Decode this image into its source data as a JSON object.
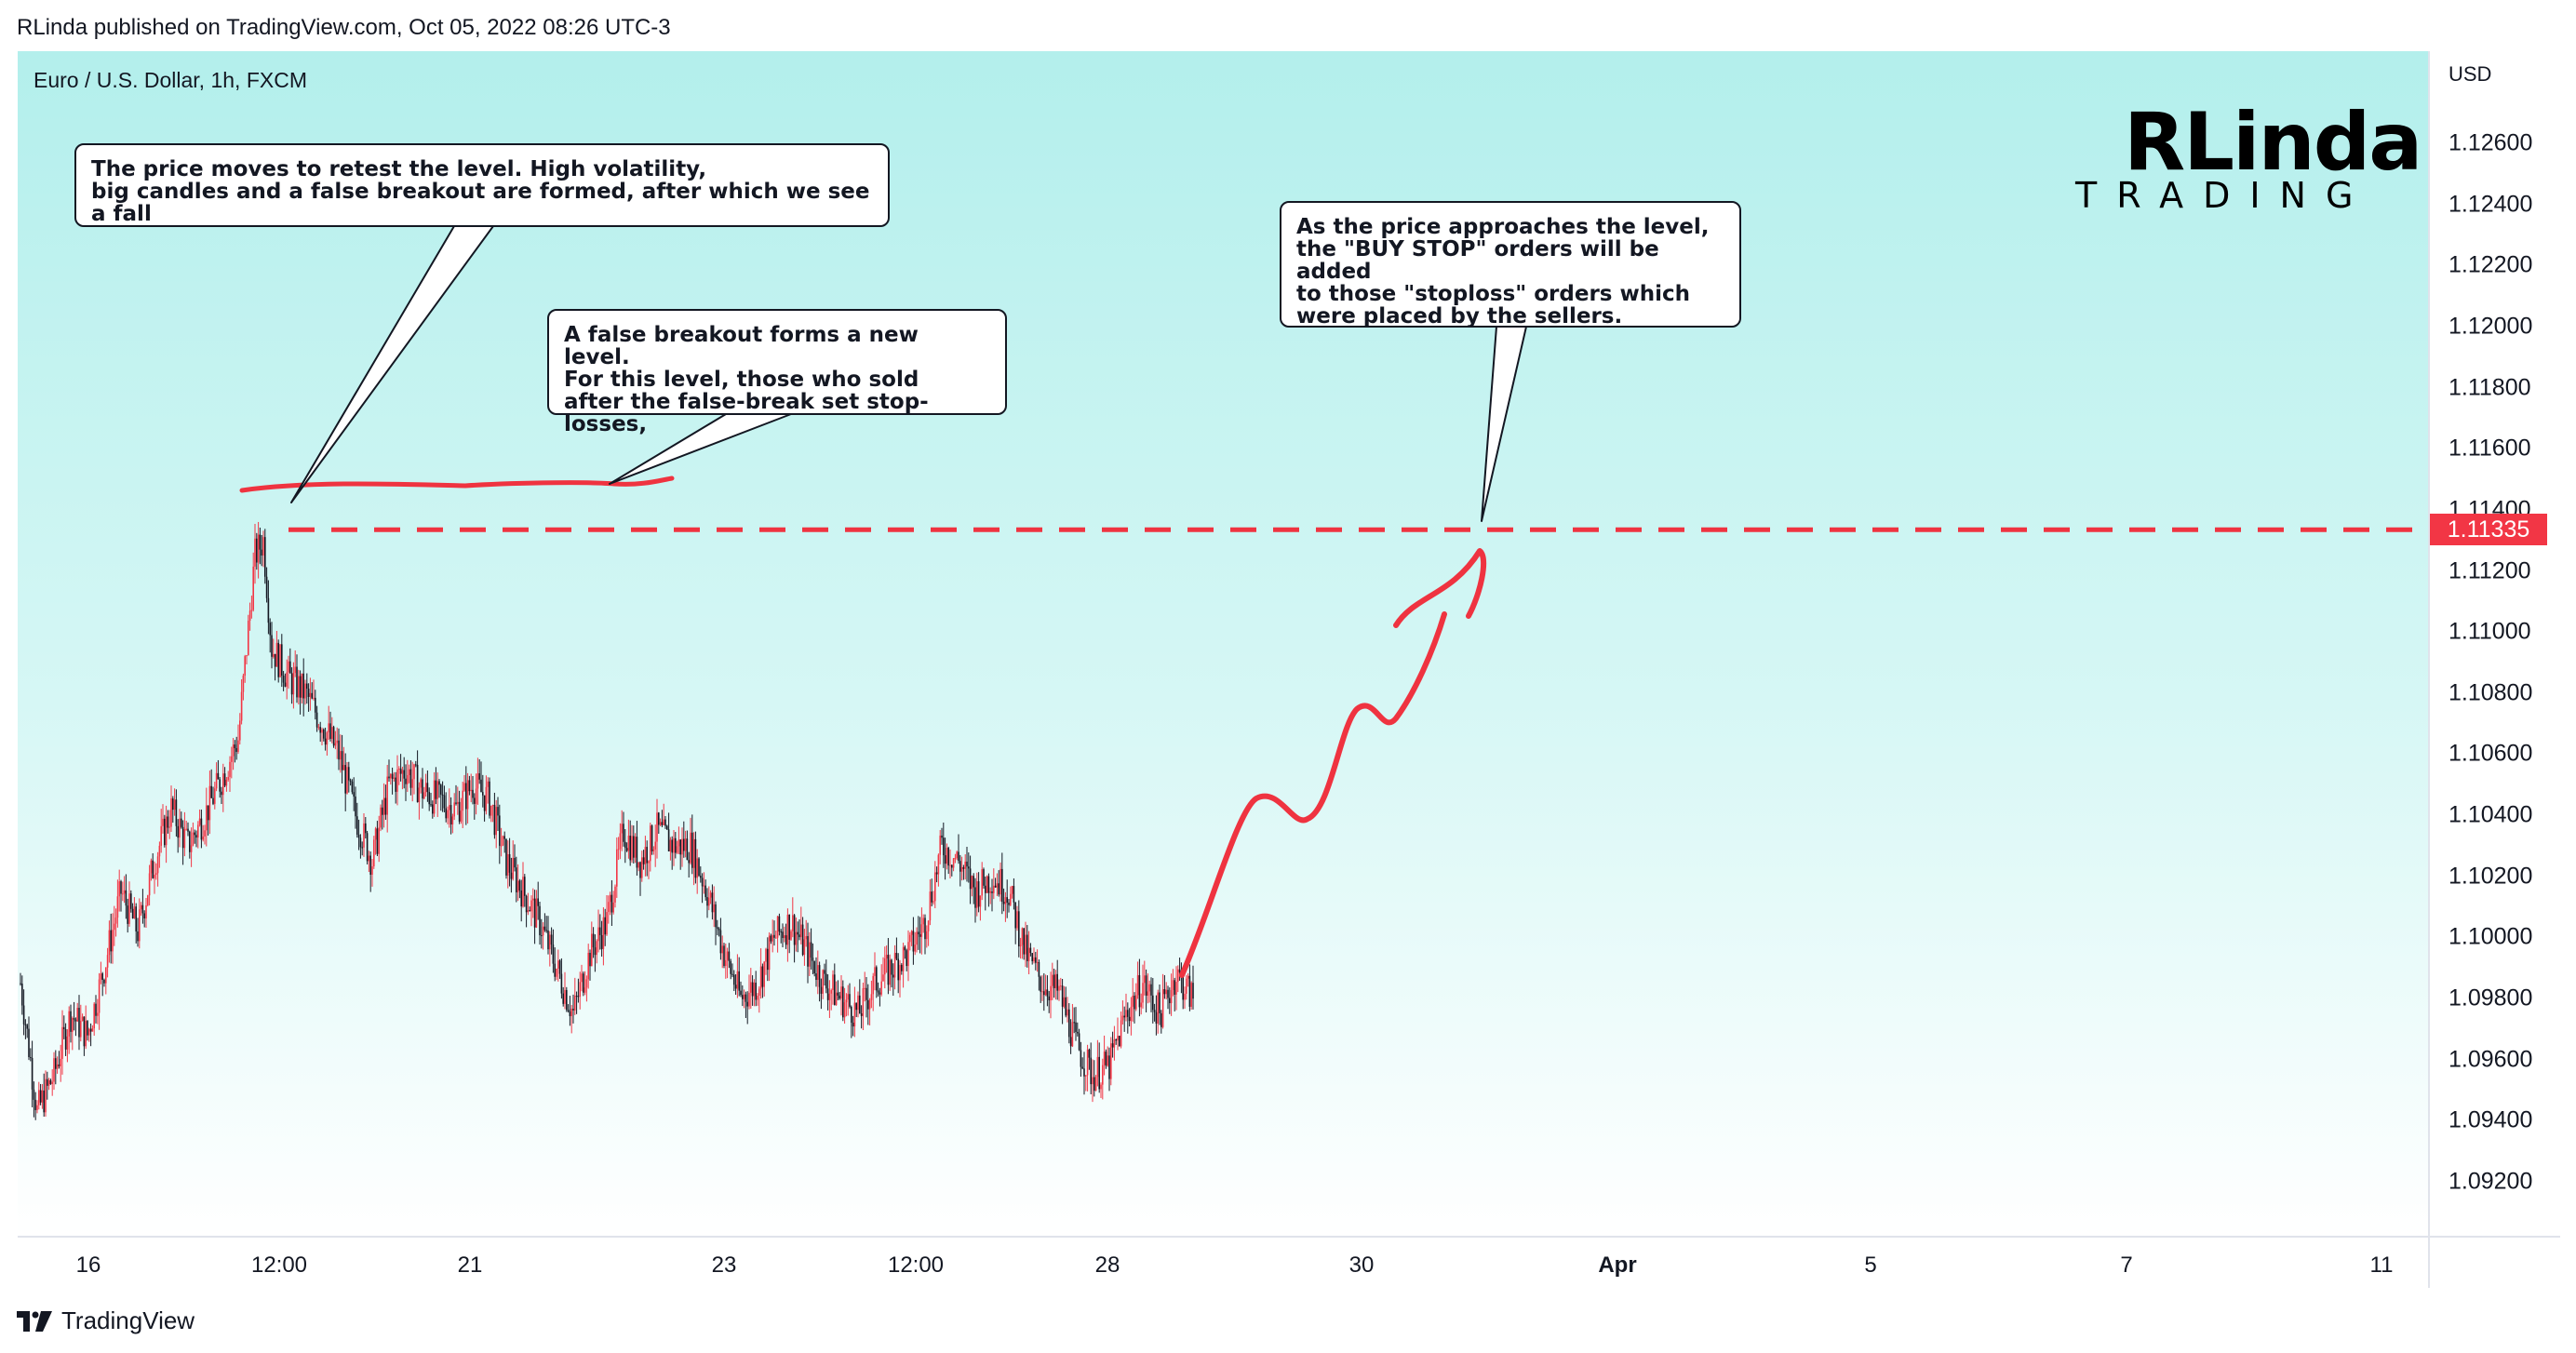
{
  "header": {
    "published": "RLinda published on TradingView.com, Oct 05, 2022 08:26 UTC-3"
  },
  "symbol_label": "Euro / U.S. Dollar, 1h, FXCM",
  "logo": {
    "top": "RLinda",
    "bottom": "TRADING"
  },
  "price_axis": {
    "unit": "USD"
  },
  "price_tag": {
    "value": "1.11335",
    "color": "#f23645"
  },
  "callouts": {
    "retest": "The price moves to retest the level. High volatility,\nbig candles and a false breakout are formed, after which we see a fall",
    "false_breakout": "A false breakout forms a new level.\nFor this level, those who sold\nafter the false-break set stop-losses,",
    "buy_stop": "As the price approaches the level,\nthe \"BUY STOP\" orders will be added\nto those \"stoploss\" orders which\nwere placed by the sellers."
  },
  "footer": {
    "brand": "TradingView"
  },
  "colors": {
    "up": "#f23645",
    "down": "#131722",
    "annotation": "#ef3340",
    "background_top": "#b3efec"
  },
  "chart_data": {
    "type": "candlestick",
    "instrument": "Euro / U.S. Dollar, 1h, FXCM",
    "ylim": [
      1.0905,
      1.1275
    ],
    "yticks": [
      "1.12600",
      "1.12400",
      "1.12200",
      "1.12000",
      "1.11800",
      "1.11600",
      "1.11400",
      "1.11200",
      "1.11000",
      "1.10800",
      "1.10600",
      "1.10400",
      "1.10200",
      "1.10000",
      "1.09800",
      "1.09600",
      "1.09400",
      "1.09200"
    ],
    "xticks": [
      "16",
      "12:00",
      "21",
      "23",
      "12:00",
      "28",
      "30",
      "Apr",
      "5",
      "7",
      "11"
    ],
    "level": 1.11335,
    "price_path": [
      [
        0,
        1.0985
      ],
      [
        10,
        1.0943
      ],
      [
        20,
        1.0955
      ],
      [
        30,
        1.0975
      ],
      [
        40,
        1.0968
      ],
      [
        50,
        1.099
      ],
      [
        60,
        1.1015
      ],
      [
        70,
        1.1002
      ],
      [
        80,
        1.1025
      ],
      [
        90,
        1.1042
      ],
      [
        100,
        1.103
      ],
      [
        110,
        1.104
      ],
      [
        120,
        1.1052
      ],
      [
        130,
        1.1065
      ],
      [
        140,
        1.1125
      ],
      [
        145,
        1.113
      ],
      [
        150,
        1.1095
      ],
      [
        160,
        1.1085
      ],
      [
        170,
        1.108
      ],
      [
        180,
        1.107
      ],
      [
        190,
        1.106
      ],
      [
        200,
        1.104
      ],
      [
        210,
        1.1025
      ],
      [
        220,
        1.105
      ],
      [
        230,
        1.1055
      ],
      [
        240,
        1.1048
      ],
      [
        250,
        1.1045
      ],
      [
        260,
        1.1042
      ],
      [
        270,
        1.105
      ],
      [
        280,
        1.1045
      ],
      [
        290,
        1.1025
      ],
      [
        300,
        1.1015
      ],
      [
        310,
        1.1005
      ],
      [
        320,
        1.099
      ],
      [
        330,
        1.0975
      ],
      [
        340,
        1.0995
      ],
      [
        350,
        1.1005
      ],
      [
        360,
        1.1035
      ],
      [
        370,
        1.1025
      ],
      [
        380,
        1.1035
      ],
      [
        390,
        1.103
      ],
      [
        400,
        1.103
      ],
      [
        410,
        1.1015
      ],
      [
        420,
        1.0995
      ],
      [
        430,
        1.098
      ],
      [
        440,
        1.0985
      ],
      [
        450,
        1.1
      ],
      [
        460,
        1.1005
      ],
      [
        470,
        1.0995
      ],
      [
        480,
        1.0985
      ],
      [
        490,
        1.098
      ],
      [
        500,
        1.0975
      ],
      [
        510,
        1.0985
      ],
      [
        520,
        1.099
      ],
      [
        530,
        1.0995
      ],
      [
        540,
        1.1005
      ],
      [
        550,
        1.103
      ],
      [
        560,
        1.1025
      ],
      [
        570,
        1.1015
      ],
      [
        580,
        1.102
      ],
      [
        590,
        1.1015
      ],
      [
        600,
        1.0995
      ],
      [
        610,
        1.0985
      ],
      [
        620,
        1.0982
      ],
      [
        630,
        1.0965
      ],
      [
        640,
        1.0955
      ],
      [
        650,
        1.0958
      ],
      [
        660,
        1.0975
      ],
      [
        670,
        1.0985
      ],
      [
        680,
        1.0975
      ],
      [
        690,
        1.0988
      ],
      [
        700,
        1.098
      ]
    ]
  }
}
